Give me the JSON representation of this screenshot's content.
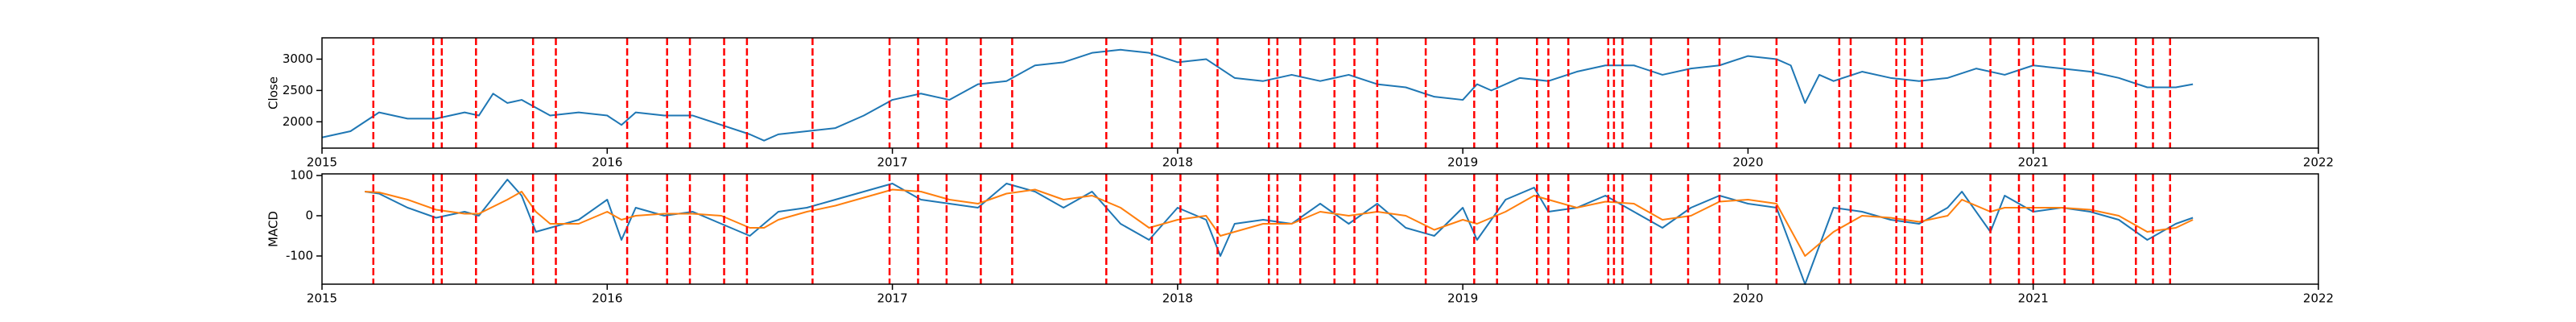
{
  "chart_data": [
    {
      "type": "line",
      "ylabel": "Close",
      "x": [
        2015.0,
        2015.1,
        2015.2,
        2015.3,
        2015.4,
        2015.5,
        2015.55,
        2015.6,
        2015.65,
        2015.7,
        2015.8,
        2015.9,
        2016.0,
        2016.05,
        2016.1,
        2016.2,
        2016.3,
        2016.4,
        2016.5,
        2016.55,
        2016.6,
        2016.7,
        2016.8,
        2016.9,
        2017.0,
        2017.1,
        2017.2,
        2017.3,
        2017.4,
        2017.5,
        2017.6,
        2017.7,
        2017.8,
        2017.9,
        2018.0,
        2018.1,
        2018.2,
        2018.3,
        2018.4,
        2018.5,
        2018.6,
        2018.7,
        2018.8,
        2018.9,
        2019.0,
        2019.05,
        2019.1,
        2019.2,
        2019.3,
        2019.4,
        2019.5,
        2019.6,
        2019.7,
        2019.8,
        2019.9,
        2020.0,
        2020.1,
        2020.15,
        2020.2,
        2020.25,
        2020.3,
        2020.4,
        2020.5,
        2020.6,
        2020.7,
        2020.8,
        2020.9,
        2021.0,
        2021.1,
        2021.2,
        2021.3,
        2021.4,
        2021.5,
        2021.56
      ],
      "series": [
        {
          "color": "#1f77b4",
          "values": [
            1750,
            1850,
            2150,
            2050,
            2050,
            2150,
            2100,
            2450,
            2300,
            2350,
            2100,
            2150,
            2100,
            1950,
            2150,
            2100,
            2100,
            1950,
            1800,
            1700,
            1800,
            1850,
            1900,
            2100,
            2350,
            2450,
            2350,
            2600,
            2650,
            2900,
            2950,
            3100,
            3150,
            3100,
            2950,
            3000,
            2700,
            2650,
            2750,
            2650,
            2750,
            2600,
            2550,
            2400,
            2350,
            2600,
            2500,
            2700,
            2650,
            2800,
            2900,
            2900,
            2750,
            2850,
            2900,
            3050,
            3000,
            2900,
            2300,
            2750,
            2650,
            2800,
            2700,
            2650,
            2700,
            2850,
            2750,
            2900,
            2850,
            2800,
            2700,
            2550,
            2550,
            2600
          ]
        }
      ],
      "xlim": [
        2015,
        2022
      ],
      "xticks": [
        2015,
        2016,
        2017,
        2018,
        2019,
        2020,
        2021,
        2022
      ],
      "ylim": [
        1580,
        3340
      ],
      "yticks": [
        2000,
        2500,
        3000
      ],
      "vlines": [
        2015.18,
        2015.39,
        2015.42,
        2015.54,
        2015.74,
        2015.82,
        2016.07,
        2016.21,
        2016.29,
        2016.41,
        2016.49,
        2016.72,
        2016.99,
        2017.09,
        2017.19,
        2017.31,
        2017.42,
        2017.75,
        2017.91,
        2018.01,
        2018.14,
        2018.32,
        2018.35,
        2018.43,
        2018.55,
        2018.62,
        2018.7,
        2018.87,
        2019.04,
        2019.12,
        2019.26,
        2019.3,
        2019.37,
        2019.51,
        2019.53,
        2019.56,
        2019.66,
        2019.79,
        2019.9,
        2020.1,
        2020.32,
        2020.36,
        2020.52,
        2020.55,
        2020.61,
        2020.85,
        2020.95,
        2021.0,
        2021.11,
        2021.21,
        2021.36,
        2021.42,
        2021.48
      ],
      "vline_color": "red"
    },
    {
      "type": "line",
      "ylabel": "MACD",
      "x": [
        2015.15,
        2015.2,
        2015.3,
        2015.4,
        2015.5,
        2015.55,
        2015.65,
        2015.7,
        2015.75,
        2015.8,
        2015.9,
        2016.0,
        2016.05,
        2016.1,
        2016.2,
        2016.3,
        2016.4,
        2016.5,
        2016.55,
        2016.6,
        2016.7,
        2016.8,
        2016.9,
        2017.0,
        2017.1,
        2017.2,
        2017.3,
        2017.4,
        2017.5,
        2017.6,
        2017.7,
        2017.8,
        2017.9,
        2018.0,
        2018.1,
        2018.15,
        2018.2,
        2018.3,
        2018.4,
        2018.5,
        2018.6,
        2018.7,
        2018.8,
        2018.9,
        2019.0,
        2019.05,
        2019.15,
        2019.25,
        2019.3,
        2019.4,
        2019.5,
        2019.6,
        2019.7,
        2019.8,
        2019.9,
        2020.0,
        2020.1,
        2020.2,
        2020.3,
        2020.4,
        2020.5,
        2020.6,
        2020.7,
        2020.75,
        2020.85,
        2020.9,
        2021.0,
        2021.1,
        2021.2,
        2021.3,
        2021.4,
        2021.5,
        2021.56
      ],
      "series": [
        {
          "color": "#1f77b4",
          "values": [
            60,
            55,
            20,
            -5,
            10,
            0,
            90,
            50,
            -40,
            -30,
            -10,
            40,
            -60,
            20,
            0,
            10,
            -20,
            -50,
            -20,
            10,
            20,
            40,
            60,
            80,
            40,
            30,
            20,
            80,
            60,
            20,
            60,
            -20,
            -60,
            20,
            -10,
            -100,
            -20,
            -10,
            -20,
            30,
            -20,
            30,
            -30,
            -50,
            20,
            -60,
            40,
            70,
            10,
            20,
            50,
            10,
            -30,
            20,
            50,
            30,
            20,
            -170,
            20,
            10,
            -10,
            -20,
            20,
            60,
            -40,
            50,
            10,
            20,
            10,
            -10,
            -60,
            -20,
            -5
          ]
        },
        {
          "color": "#ff7f0e",
          "values": [
            60,
            58,
            40,
            15,
            5,
            5,
            40,
            60,
            10,
            -20,
            -20,
            10,
            -10,
            0,
            5,
            5,
            0,
            -30,
            -30,
            -10,
            10,
            25,
            45,
            65,
            60,
            40,
            30,
            55,
            65,
            40,
            50,
            20,
            -30,
            -10,
            0,
            -50,
            -40,
            -20,
            -20,
            10,
            0,
            10,
            0,
            -35,
            -10,
            -20,
            10,
            50,
            40,
            20,
            35,
            30,
            -10,
            0,
            35,
            40,
            30,
            -100,
            -40,
            0,
            -5,
            -15,
            0,
            40,
            10,
            20,
            20,
            20,
            15,
            0,
            -40,
            -30,
            -10
          ]
        }
      ],
      "xlim": [
        2015,
        2022
      ],
      "xticks": [
        2015,
        2016,
        2017,
        2018,
        2019,
        2020,
        2021,
        2022
      ],
      "ylim": [
        -170,
        104
      ],
      "yticks": [
        -100,
        0,
        100
      ],
      "vlines": [
        2015.18,
        2015.39,
        2015.42,
        2015.54,
        2015.74,
        2015.82,
        2016.07,
        2016.21,
        2016.29,
        2016.41,
        2016.49,
        2016.72,
        2016.99,
        2017.09,
        2017.19,
        2017.31,
        2017.42,
        2017.75,
        2017.91,
        2018.01,
        2018.14,
        2018.32,
        2018.35,
        2018.43,
        2018.55,
        2018.62,
        2018.7,
        2018.87,
        2019.04,
        2019.12,
        2019.26,
        2019.3,
        2019.37,
        2019.51,
        2019.53,
        2019.56,
        2019.66,
        2019.79,
        2019.9,
        2020.1,
        2020.32,
        2020.36,
        2020.52,
        2020.55,
        2020.61,
        2020.85,
        2020.95,
        2021.0,
        2021.11,
        2021.21,
        2021.36,
        2021.42,
        2021.48
      ],
      "vline_color": "red"
    }
  ]
}
